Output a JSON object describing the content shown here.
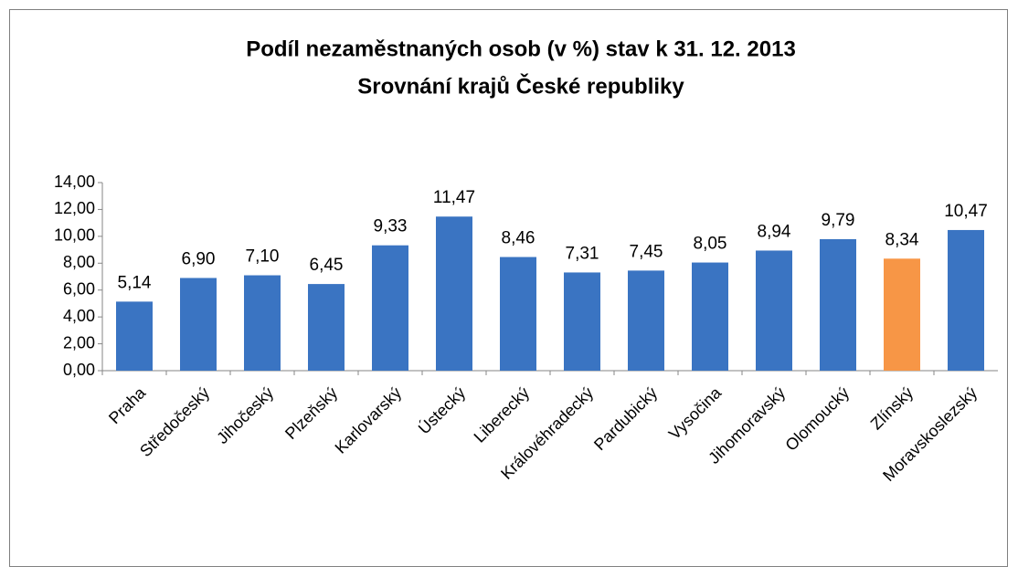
{
  "chart_data": {
    "type": "bar",
    "title": "Podíl nezaměstnaných osob (v %) stav k 31. 12. 2013",
    "subtitle": "Srovnání krajů České republiky",
    "categories": [
      "Praha",
      "Středočeský",
      "Jihočeský",
      "Plzeňský",
      "Karlovarský",
      "Ústecký",
      "Liberecký",
      "Královéhradecký",
      "Pardubický",
      "Vysočina",
      "Jihomoravský",
      "Olomoucký",
      "Zlínský",
      "Moravskoslezský"
    ],
    "values": [
      5.14,
      6.9,
      7.1,
      6.45,
      9.33,
      11.47,
      8.46,
      7.31,
      7.45,
      8.05,
      8.94,
      9.79,
      8.34,
      10.47
    ],
    "value_labels": [
      "5,14",
      "6,90",
      "7,10",
      "6,45",
      "9,33",
      "11,47",
      "8,46",
      "7,31",
      "7,45",
      "8,05",
      "8,94",
      "9,79",
      "8,34",
      "10,47"
    ],
    "colors": [
      "#3a74c2",
      "#3a74c2",
      "#3a74c2",
      "#3a74c2",
      "#3a74c2",
      "#3a74c2",
      "#3a74c2",
      "#3a74c2",
      "#3a74c2",
      "#3a74c2",
      "#3a74c2",
      "#3a74c2",
      "#f79646",
      "#3a74c2"
    ],
    "ylim": [
      0,
      14
    ],
    "yticks": [
      {
        "value": 0,
        "label": "0,00"
      },
      {
        "value": 2,
        "label": "2,00"
      },
      {
        "value": 4,
        "label": "4,00"
      },
      {
        "value": 6,
        "label": "6,00"
      },
      {
        "value": 8,
        "label": "8,00"
      },
      {
        "value": 10,
        "label": "10,00"
      },
      {
        "value": 12,
        "label": "12,00"
      },
      {
        "value": 14,
        "label": "14,00"
      }
    ],
    "grid": false
  }
}
